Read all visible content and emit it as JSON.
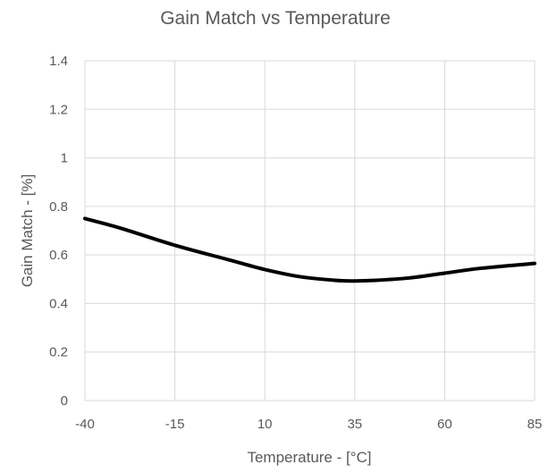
{
  "chart_data": {
    "type": "line",
    "title": "Gain Match vs Temperature",
    "xlabel": "Temperature - [°C]",
    "ylabel": "Gain Match - [%]",
    "xlim": [
      -40,
      85
    ],
    "ylim": [
      0,
      1.4
    ],
    "x_ticks": [
      "-40",
      "-15",
      "10",
      "35",
      "60",
      "85"
    ],
    "y_ticks": [
      "0",
      "0.2",
      "0.4",
      "0.6",
      "0.8",
      "1",
      "1.2",
      "1.4"
    ],
    "grid": true,
    "series": [
      {
        "color": "#000000",
        "x": [
          -40,
          -30,
          -15,
          0,
          10,
          20,
          30,
          35,
          40,
          50,
          60,
          70,
          85
        ],
        "y": [
          0.75,
          0.71,
          0.64,
          0.58,
          0.54,
          0.51,
          0.495,
          0.493,
          0.495,
          0.505,
          0.525,
          0.545,
          0.565
        ]
      }
    ]
  }
}
